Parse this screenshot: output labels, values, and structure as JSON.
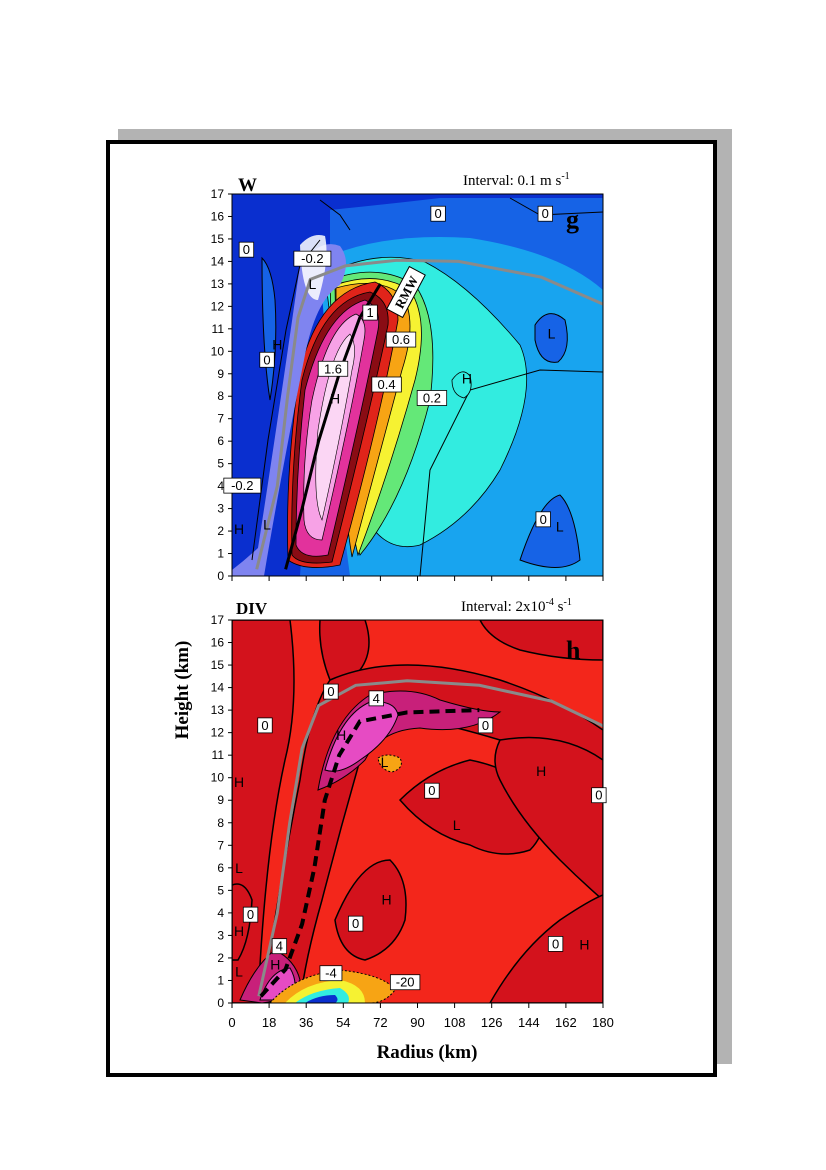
{
  "colors": {
    "w_blue_deep": "#0a2fcf",
    "w_blue_mid": "#1663e6",
    "w_sky": "#18a4ef",
    "w_cyan": "#32ece0",
    "w_green": "#64e878",
    "w_yellow": "#f6f232",
    "w_orange": "#f7a414",
    "w_red": "#e0241a",
    "w_darkred": "#8a0c14",
    "w_magenta": "#e2329c",
    "w_pink": "#f7a2e6",
    "w_lavender": "#7f84f0",
    "div_red": "#f3261b",
    "div_darkred": "#d3121c",
    "div_magenta": "#c8207a",
    "div_pink": "#e64bc3",
    "gray_curve": "#8a8a8a",
    "frame_shadow": "#b3b3b3"
  },
  "chart_data": [
    {
      "type": "contour",
      "panel_letter": "g",
      "title": "W",
      "interval_label": "Interval: 0.1 m s",
      "interval_sup": "-1",
      "ylabel": "Height (km)",
      "xlabel": "Radius (km)",
      "xlim": [
        0,
        180
      ],
      "ylim": [
        0,
        17
      ],
      "yticks": [
        0,
        1,
        2,
        3,
        4,
        5,
        6,
        7,
        8,
        9,
        10,
        11,
        12,
        13,
        14,
        15,
        16,
        17
      ],
      "contour_labels": [
        {
          "text": "0",
          "x": 7,
          "y": 14.5
        },
        {
          "text": "0",
          "x": 100,
          "y": 16.1
        },
        {
          "text": "0",
          "x": 152,
          "y": 16.1
        },
        {
          "text": "-0.2",
          "x": 39,
          "y": 14.1
        },
        {
          "text": "0",
          "x": 17,
          "y": 9.6
        },
        {
          "text": "1",
          "x": 67,
          "y": 11.7
        },
        {
          "text": "1.6",
          "x": 49,
          "y": 9.2
        },
        {
          "text": "0.6",
          "x": 82,
          "y": 10.5
        },
        {
          "text": "0.4",
          "x": 75,
          "y": 8.5
        },
        {
          "text": "0.2",
          "x": 97,
          "y": 7.9
        },
        {
          "text": "-0.2",
          "x": 5,
          "y": 4.0
        },
        {
          "text": "0",
          "x": 151,
          "y": 2.5
        }
      ],
      "extrema": [
        {
          "text": "L",
          "x": 39,
          "y": 13.0
        },
        {
          "text": "H",
          "x": 22,
          "y": 10.3
        },
        {
          "text": "H",
          "x": 50,
          "y": 7.9
        },
        {
          "text": "L",
          "x": 155,
          "y": 10.8
        },
        {
          "text": "H",
          "x": 114,
          "y": 8.8
        },
        {
          "text": "H",
          "x": 2,
          "y": 2.1
        },
        {
          "text": "L",
          "x": 17,
          "y": 2.3
        },
        {
          "text": "L",
          "x": 159,
          "y": 2.2
        }
      ],
      "annotations": [
        {
          "text": "RMW",
          "x": 84,
          "y": 12.8
        }
      ],
      "curves": {
        "outflow_boundary_gray": [
          [
            12,
            0.3
          ],
          [
            22,
            4
          ],
          [
            27,
            8
          ],
          [
            32,
            11.5
          ],
          [
            38,
            13.2
          ],
          [
            55,
            13.8
          ],
          [
            80,
            14.05
          ],
          [
            110,
            14
          ],
          [
            150,
            13.3
          ],
          [
            180,
            12.1
          ]
        ],
        "rmw_black": [
          [
            26,
            0.3
          ],
          [
            34,
            3
          ],
          [
            42,
            6
          ],
          [
            52,
            9
          ],
          [
            62,
            11.5
          ],
          [
            72,
            13
          ]
        ]
      }
    },
    {
      "type": "contour",
      "panel_letter": "h",
      "title": "DIV",
      "interval_label": "Interval: 2x10",
      "interval_sup": "-4",
      "interval_unit": " s",
      "interval_unit_sup": "-1",
      "xlim": [
        0,
        180
      ],
      "ylim": [
        0,
        17
      ],
      "xticks": [
        0,
        18,
        36,
        54,
        72,
        90,
        108,
        126,
        144,
        162,
        180
      ],
      "yticks": [
        0,
        1,
        2,
        3,
        4,
        5,
        6,
        7,
        8,
        9,
        10,
        11,
        12,
        13,
        14,
        15,
        16,
        17
      ],
      "contour_labels": [
        {
          "text": "0",
          "x": 48,
          "y": 13.8
        },
        {
          "text": "4",
          "x": 70,
          "y": 13.5
        },
        {
          "text": "0",
          "x": 16,
          "y": 12.3
        },
        {
          "text": "0",
          "x": 123,
          "y": 12.3
        },
        {
          "text": "0",
          "x": 97,
          "y": 9.4
        },
        {
          "text": "0",
          "x": 178,
          "y": 9.2
        },
        {
          "text": "0",
          "x": 9,
          "y": 3.9
        },
        {
          "text": "0",
          "x": 60,
          "y": 3.5
        },
        {
          "text": "0",
          "x": 157,
          "y": 2.6
        },
        {
          "text": "4",
          "x": 23,
          "y": 2.5
        },
        {
          "text": "-4",
          "x": 48,
          "y": 1.3
        },
        {
          "text": "-20",
          "x": 84,
          "y": 0.9
        }
      ],
      "extrema": [
        {
          "text": "H",
          "x": 53,
          "y": 11.9
        },
        {
          "text": "L",
          "x": 74,
          "y": 10.7
        },
        {
          "text": "H",
          "x": 150,
          "y": 10.3
        },
        {
          "text": "H",
          "x": 0,
          "y": 9.8
        },
        {
          "text": "L",
          "x": 109,
          "y": 7.9
        },
        {
          "text": "L",
          "x": 0,
          "y": 6.0
        },
        {
          "text": "H",
          "x": 75,
          "y": 4.6
        },
        {
          "text": "H",
          "x": 0,
          "y": 3.2
        },
        {
          "text": "H",
          "x": 21,
          "y": 1.7
        },
        {
          "text": "H",
          "x": 171,
          "y": 2.6
        },
        {
          "text": "L",
          "x": 0,
          "y": 1.4
        }
      ],
      "curves": {
        "outflow_boundary_gray": [
          [
            13,
            0.3
          ],
          [
            22,
            4
          ],
          [
            28,
            8
          ],
          [
            34,
            11.3
          ],
          [
            42,
            13.2
          ],
          [
            60,
            14.1
          ],
          [
            85,
            14.3
          ],
          [
            120,
            14.1
          ],
          [
            155,
            13.4
          ],
          [
            180,
            12.3
          ]
        ],
        "dashed_black": [
          [
            14,
            0.3
          ],
          [
            26,
            1.5
          ],
          [
            34,
            3.5
          ],
          [
            40,
            6
          ],
          [
            45,
            9
          ],
          [
            52,
            11
          ],
          [
            62,
            12.5
          ],
          [
            85,
            12.9
          ],
          [
            120,
            13
          ]
        ]
      }
    }
  ]
}
